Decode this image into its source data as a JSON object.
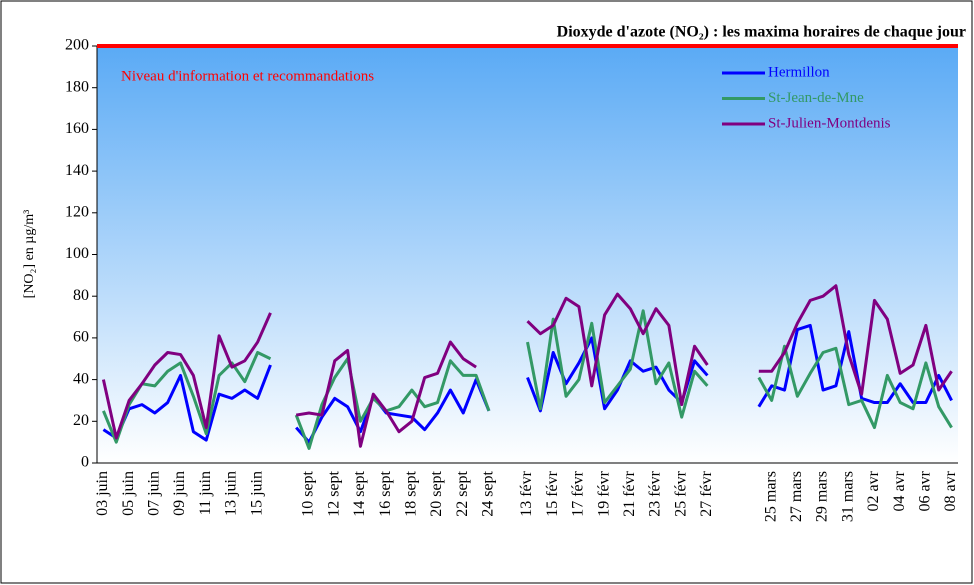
{
  "chart_data": {
    "type": "line",
    "title": "Dioxyde d'azote (NO₂) : les maxima horaires de chaque jour",
    "y_label": "[NO₂] en µg/m³",
    "categories": [
      "03 juin",
      null,
      "05 juin",
      null,
      "07 juin",
      null,
      "09 juin",
      null,
      "11 juin",
      null,
      "13 juin",
      null,
      "15 juin",
      null,
      null,
      null,
      "10 sept",
      null,
      "12 sept",
      null,
      "14 sept",
      null,
      "16 sept",
      null,
      "18 sept",
      null,
      "20 sept",
      null,
      "22 sept",
      null,
      "24 sept",
      null,
      null,
      "13 févr",
      null,
      "15 févr",
      null,
      "17 févr",
      null,
      "19 févr",
      null,
      "21 févr",
      null,
      "23 févr",
      null,
      "25 févr",
      null,
      "27 févr",
      null,
      null,
      null,
      null,
      "25 mars",
      null,
      "27 mars",
      null,
      "29 mars",
      null,
      "31 mars",
      null,
      "02 avr",
      null,
      "04 avr",
      null,
      "06 avr",
      null,
      "08 avr"
    ],
    "series": [
      {
        "name": "Hermillon",
        "color": "#0000ff",
        "values": [
          16,
          12,
          26,
          28,
          24,
          29,
          42,
          15,
          11,
          33,
          31,
          35,
          31,
          47,
          null,
          17,
          10,
          22,
          31,
          27,
          15,
          32,
          24,
          23,
          22,
          16,
          24,
          35,
          24,
          40,
          25,
          null,
          null,
          41,
          25,
          53,
          38,
          48,
          60,
          26,
          35,
          49,
          44,
          46,
          35,
          29,
          49,
          42,
          null,
          null,
          null,
          27,
          37,
          35,
          64,
          66,
          35,
          37,
          63,
          31,
          29,
          29,
          38,
          29,
          29,
          42,
          30
        ]
      },
      {
        "name": "St-Jean-de-Mne",
        "color": "#339966",
        "values": [
          25,
          10,
          28,
          38,
          37,
          44,
          48,
          32,
          14,
          42,
          48,
          39,
          53,
          50,
          null,
          23,
          7,
          28,
          41,
          50,
          20,
          31,
          25,
          27,
          35,
          27,
          29,
          49,
          42,
          42,
          25,
          null,
          null,
          58,
          26,
          69,
          32,
          40,
          67,
          29,
          37,
          45,
          73,
          38,
          48,
          22,
          44,
          37,
          null,
          null,
          null,
          41,
          30,
          56,
          32,
          43,
          53,
          55,
          28,
          30,
          17,
          42,
          29,
          26,
          48,
          27,
          17
        ]
      },
      {
        "name": "St-Julien-Montdenis",
        "color": "#800080",
        "values": [
          40,
          12,
          30,
          38,
          47,
          53,
          52,
          42,
          17,
          61,
          46,
          49,
          58,
          72,
          null,
          23,
          24,
          23,
          49,
          54,
          8,
          33,
          25,
          15,
          20,
          41,
          43,
          58,
          50,
          46,
          null,
          null,
          null,
          68,
          62,
          66,
          79,
          75,
          37,
          71,
          81,
          74,
          62,
          74,
          66,
          28,
          56,
          47,
          null,
          null,
          null,
          44,
          44,
          53,
          67,
          78,
          80,
          85,
          52,
          33,
          78,
          69,
          43,
          47,
          66,
          35,
          44
        ]
      }
    ],
    "threshold": {
      "value": 200,
      "label": "Niveau d'information et recommandations",
      "color": "#ff0000"
    },
    "ylim": [
      0,
      200
    ],
    "yticks": [
      0,
      20,
      40,
      60,
      80,
      100,
      120,
      140,
      160,
      180,
      200
    ],
    "grid": false,
    "legend": "top-right"
  }
}
